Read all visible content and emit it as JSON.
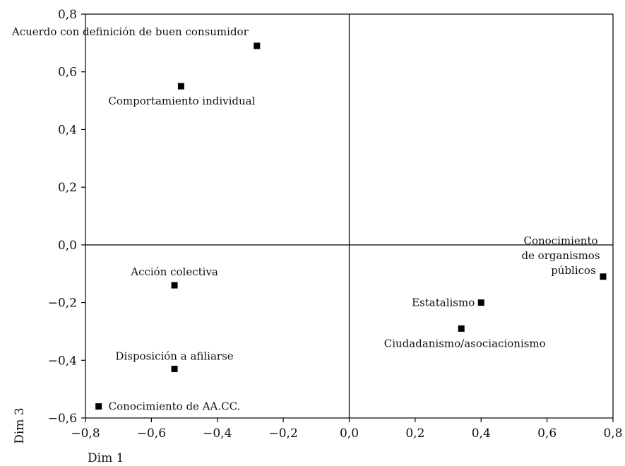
{
  "chart_data": {
    "type": "scatter",
    "title": "",
    "xlabel": "Dim 1",
    "ylabel": "Dim 3",
    "xlim": [
      -0.8,
      0.8
    ],
    "ylim": [
      -0.6,
      0.8
    ],
    "grid": false,
    "reference_lines": {
      "x": 0.0,
      "y": 0.0
    },
    "x_ticks": [
      -0.8,
      -0.6,
      -0.4,
      -0.2,
      0.0,
      0.2,
      0.4,
      0.6,
      0.8
    ],
    "x_tick_labels": [
      "−0,8",
      "−0,6",
      "−0,4",
      "−0,2",
      "0,0",
      "0,2",
      "0,4",
      "0,6",
      "0,8"
    ],
    "y_ticks": [
      -0.6,
      -0.4,
      -0.2,
      0.0,
      0.2,
      0.4,
      0.6,
      0.8
    ],
    "y_tick_labels": [
      "−0,6",
      "−0,4",
      "−0,2",
      "0,0",
      "0,2",
      "0,4",
      "0,6",
      "0,8"
    ],
    "marker_color": "#000000",
    "points": [
      {
        "label": "Acuerdo con definición de buen consumidor",
        "x": -0.28,
        "y": 0.69
      },
      {
        "label": "Comportamiento individual",
        "x": -0.51,
        "y": 0.55
      },
      {
        "label": "Acción colectiva",
        "x": -0.53,
        "y": -0.14
      },
      {
        "label": "Disposición a afiliarse",
        "x": -0.53,
        "y": -0.43
      },
      {
        "label": "Conocimiento de AA.CC.",
        "x": -0.76,
        "y": -0.56
      },
      {
        "label": "Estatalismo",
        "x": 0.4,
        "y": -0.2
      },
      {
        "label": "Ciudadanismo/asociacionismo",
        "x": 0.34,
        "y": -0.29
      },
      {
        "label": "Conocimiento de organismos públicos",
        "x": 0.77,
        "y": -0.11
      }
    ]
  }
}
